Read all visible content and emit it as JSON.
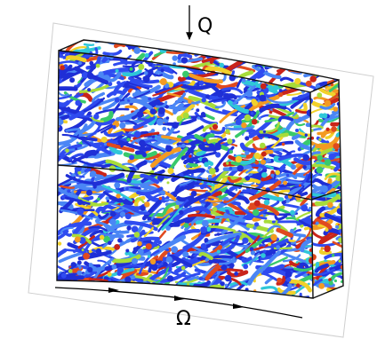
{
  "labels": {
    "top_symbol": "Q",
    "bottom_symbol": "Ω"
  },
  "colors": {
    "background": "#ffffff",
    "outline": "#111111",
    "paper_edge": "#cfcfcf",
    "flow_palette": [
      "#1f2fd6",
      "#2f4bf0",
      "#4a86f5",
      "#2fc7d8",
      "#39c96b",
      "#a7dc3a",
      "#f1d12a",
      "#f39a22",
      "#e04a1f",
      "#c9241a"
    ]
  }
}
